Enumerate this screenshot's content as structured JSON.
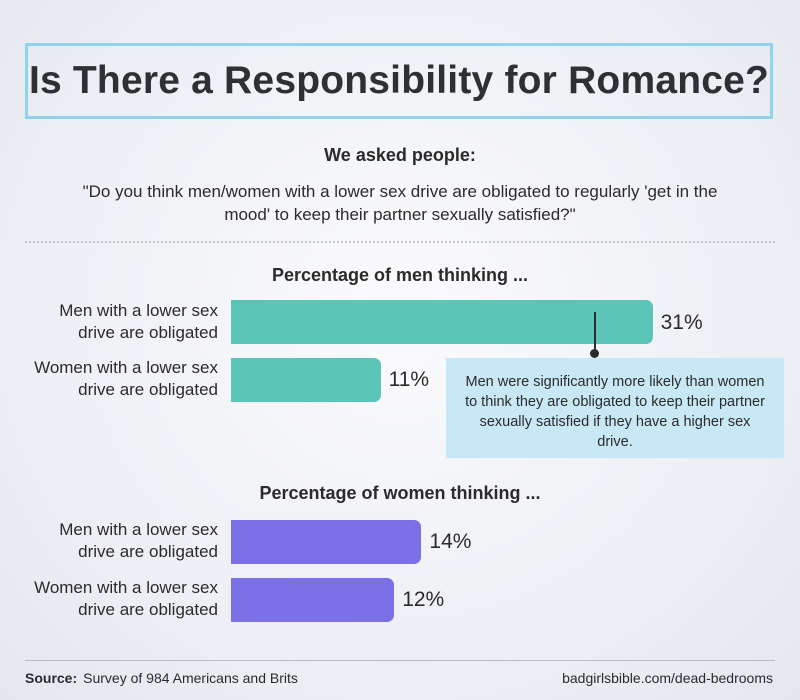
{
  "title": "Is There a Responsibility for Romance?",
  "asked_label": "We asked people:",
  "question": "\"Do you think men/women with a lower sex drive are obligated to regularly 'get in the mood' to keep their partner sexually satisfied?\"",
  "callout": "Men were significantly more likely than women to think they are obligated to keep their partner sexually satisfied if they have a higher sex drive.",
  "footer": {
    "source_label": "Source:",
    "source_text": "Survey of 984 Americans and Brits",
    "site": "badgirlsbible.com/dead-bedrooms"
  },
  "colors": {
    "men_bar": "#5bc6b8",
    "women_bar": "#7b70e6",
    "title_border": "#8fd3ee",
    "callout_bg": "#c9e8f6"
  },
  "chart_data": [
    {
      "type": "bar",
      "orientation": "horizontal",
      "title": "Percentage of men thinking ...",
      "categories": [
        "Men with a lower sex drive are obligated",
        "Women with a lower sex drive are obligated"
      ],
      "values": [
        31,
        11
      ],
      "value_labels": [
        "31%",
        "11%"
      ],
      "unit": "%",
      "xlim": [
        0,
        100
      ]
    },
    {
      "type": "bar",
      "orientation": "horizontal",
      "title": "Percentage of women thinking ...",
      "categories": [
        "Men with a lower sex drive are obligated",
        "Women with a lower sex drive are obligated"
      ],
      "values": [
        14,
        12
      ],
      "value_labels": [
        "14%",
        "12%"
      ],
      "unit": "%",
      "xlim": [
        0,
        100
      ]
    }
  ]
}
